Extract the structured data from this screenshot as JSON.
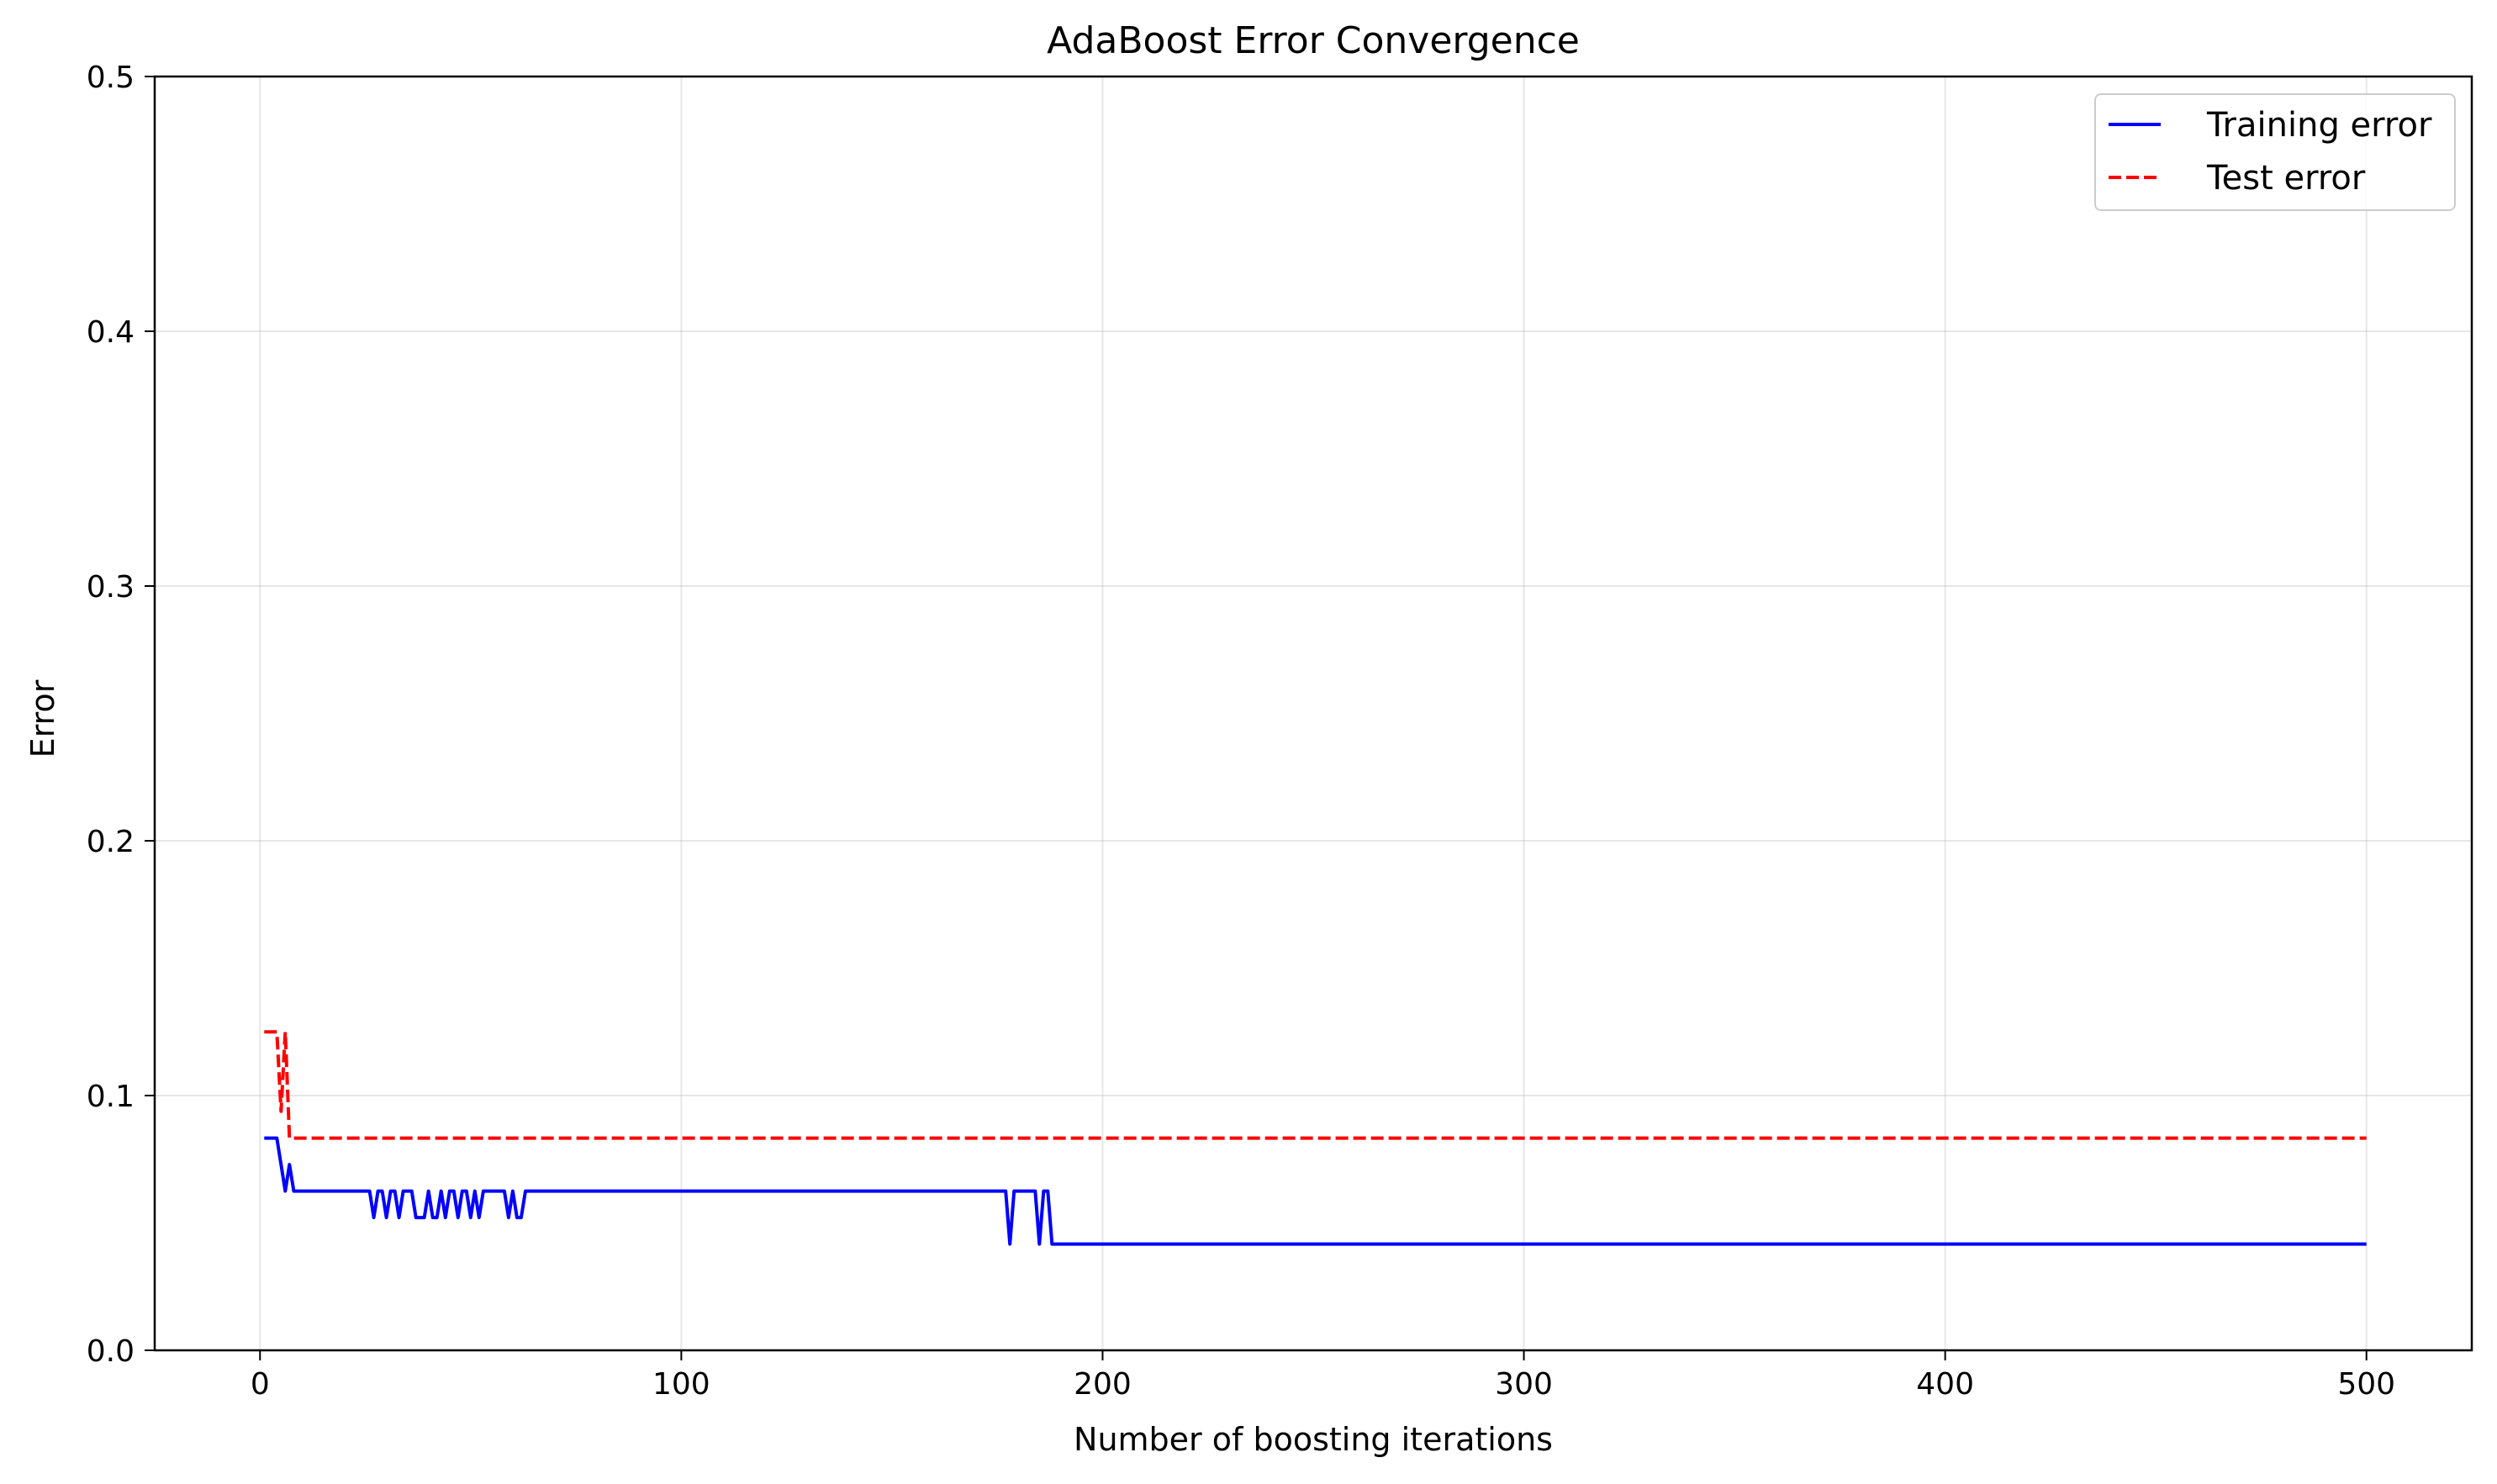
{
  "chart_data": {
    "type": "line",
    "title": "AdaBoost Error Convergence",
    "xlabel": "Number of boosting iterations",
    "ylabel": "Error",
    "xlim": [
      -25,
      525
    ],
    "ylim": [
      0.0,
      0.5
    ],
    "x_ticks": [
      0,
      100,
      200,
      300,
      400,
      500
    ],
    "x_tick_labels": [
      "0",
      "100",
      "200",
      "300",
      "400",
      "500"
    ],
    "y_ticks": [
      0.0,
      0.1,
      0.2,
      0.3,
      0.4,
      0.5
    ],
    "y_tick_labels": [
      "0.0",
      "0.1",
      "0.2",
      "0.3",
      "0.4",
      "0.5"
    ],
    "grid": true,
    "legend_position": "top-right",
    "series": [
      {
        "name": "Training error",
        "color": "#0000ff",
        "style": "solid",
        "points": [
          [
            1,
            0.0833
          ],
          [
            4,
            0.0833
          ],
          [
            5,
            0.0729
          ],
          [
            6,
            0.0625
          ],
          [
            7,
            0.0729
          ],
          [
            8,
            0.0625
          ],
          [
            26,
            0.0625
          ],
          [
            27,
            0.0521
          ],
          [
            28,
            0.0625
          ],
          [
            29,
            0.0625
          ],
          [
            30,
            0.0521
          ],
          [
            31,
            0.0625
          ],
          [
            32,
            0.0625
          ],
          [
            33,
            0.0521
          ],
          [
            34,
            0.0625
          ],
          [
            36,
            0.0625
          ],
          [
            37,
            0.0521
          ],
          [
            39,
            0.0521
          ],
          [
            40,
            0.0625
          ],
          [
            41,
            0.0521
          ],
          [
            42,
            0.0521
          ],
          [
            43,
            0.0625
          ],
          [
            44,
            0.0521
          ],
          [
            45,
            0.0625
          ],
          [
            46,
            0.0625
          ],
          [
            47,
            0.0521
          ],
          [
            48,
            0.0625
          ],
          [
            49,
            0.0625
          ],
          [
            50,
            0.0521
          ],
          [
            51,
            0.0625
          ],
          [
            52,
            0.0521
          ],
          [
            53,
            0.0625
          ],
          [
            58,
            0.0625
          ],
          [
            59,
            0.0521
          ],
          [
            60,
            0.0625
          ],
          [
            61,
            0.0521
          ],
          [
            62,
            0.0521
          ],
          [
            63,
            0.0625
          ],
          [
            177,
            0.0625
          ],
          [
            178,
            0.0417
          ],
          [
            179,
            0.0625
          ],
          [
            184,
            0.0625
          ],
          [
            185,
            0.0417
          ],
          [
            186,
            0.0625
          ],
          [
            187,
            0.0625
          ],
          [
            188,
            0.0417
          ],
          [
            500,
            0.0417
          ]
        ]
      },
      {
        "name": "Test error",
        "color": "#ff0000",
        "style": "dashed",
        "points": [
          [
            1,
            0.125
          ],
          [
            4,
            0.125
          ],
          [
            5,
            0.0938
          ],
          [
            6,
            0.125
          ],
          [
            7,
            0.0833
          ],
          [
            8,
            0.0833
          ],
          [
            500,
            0.0833
          ]
        ]
      }
    ]
  }
}
